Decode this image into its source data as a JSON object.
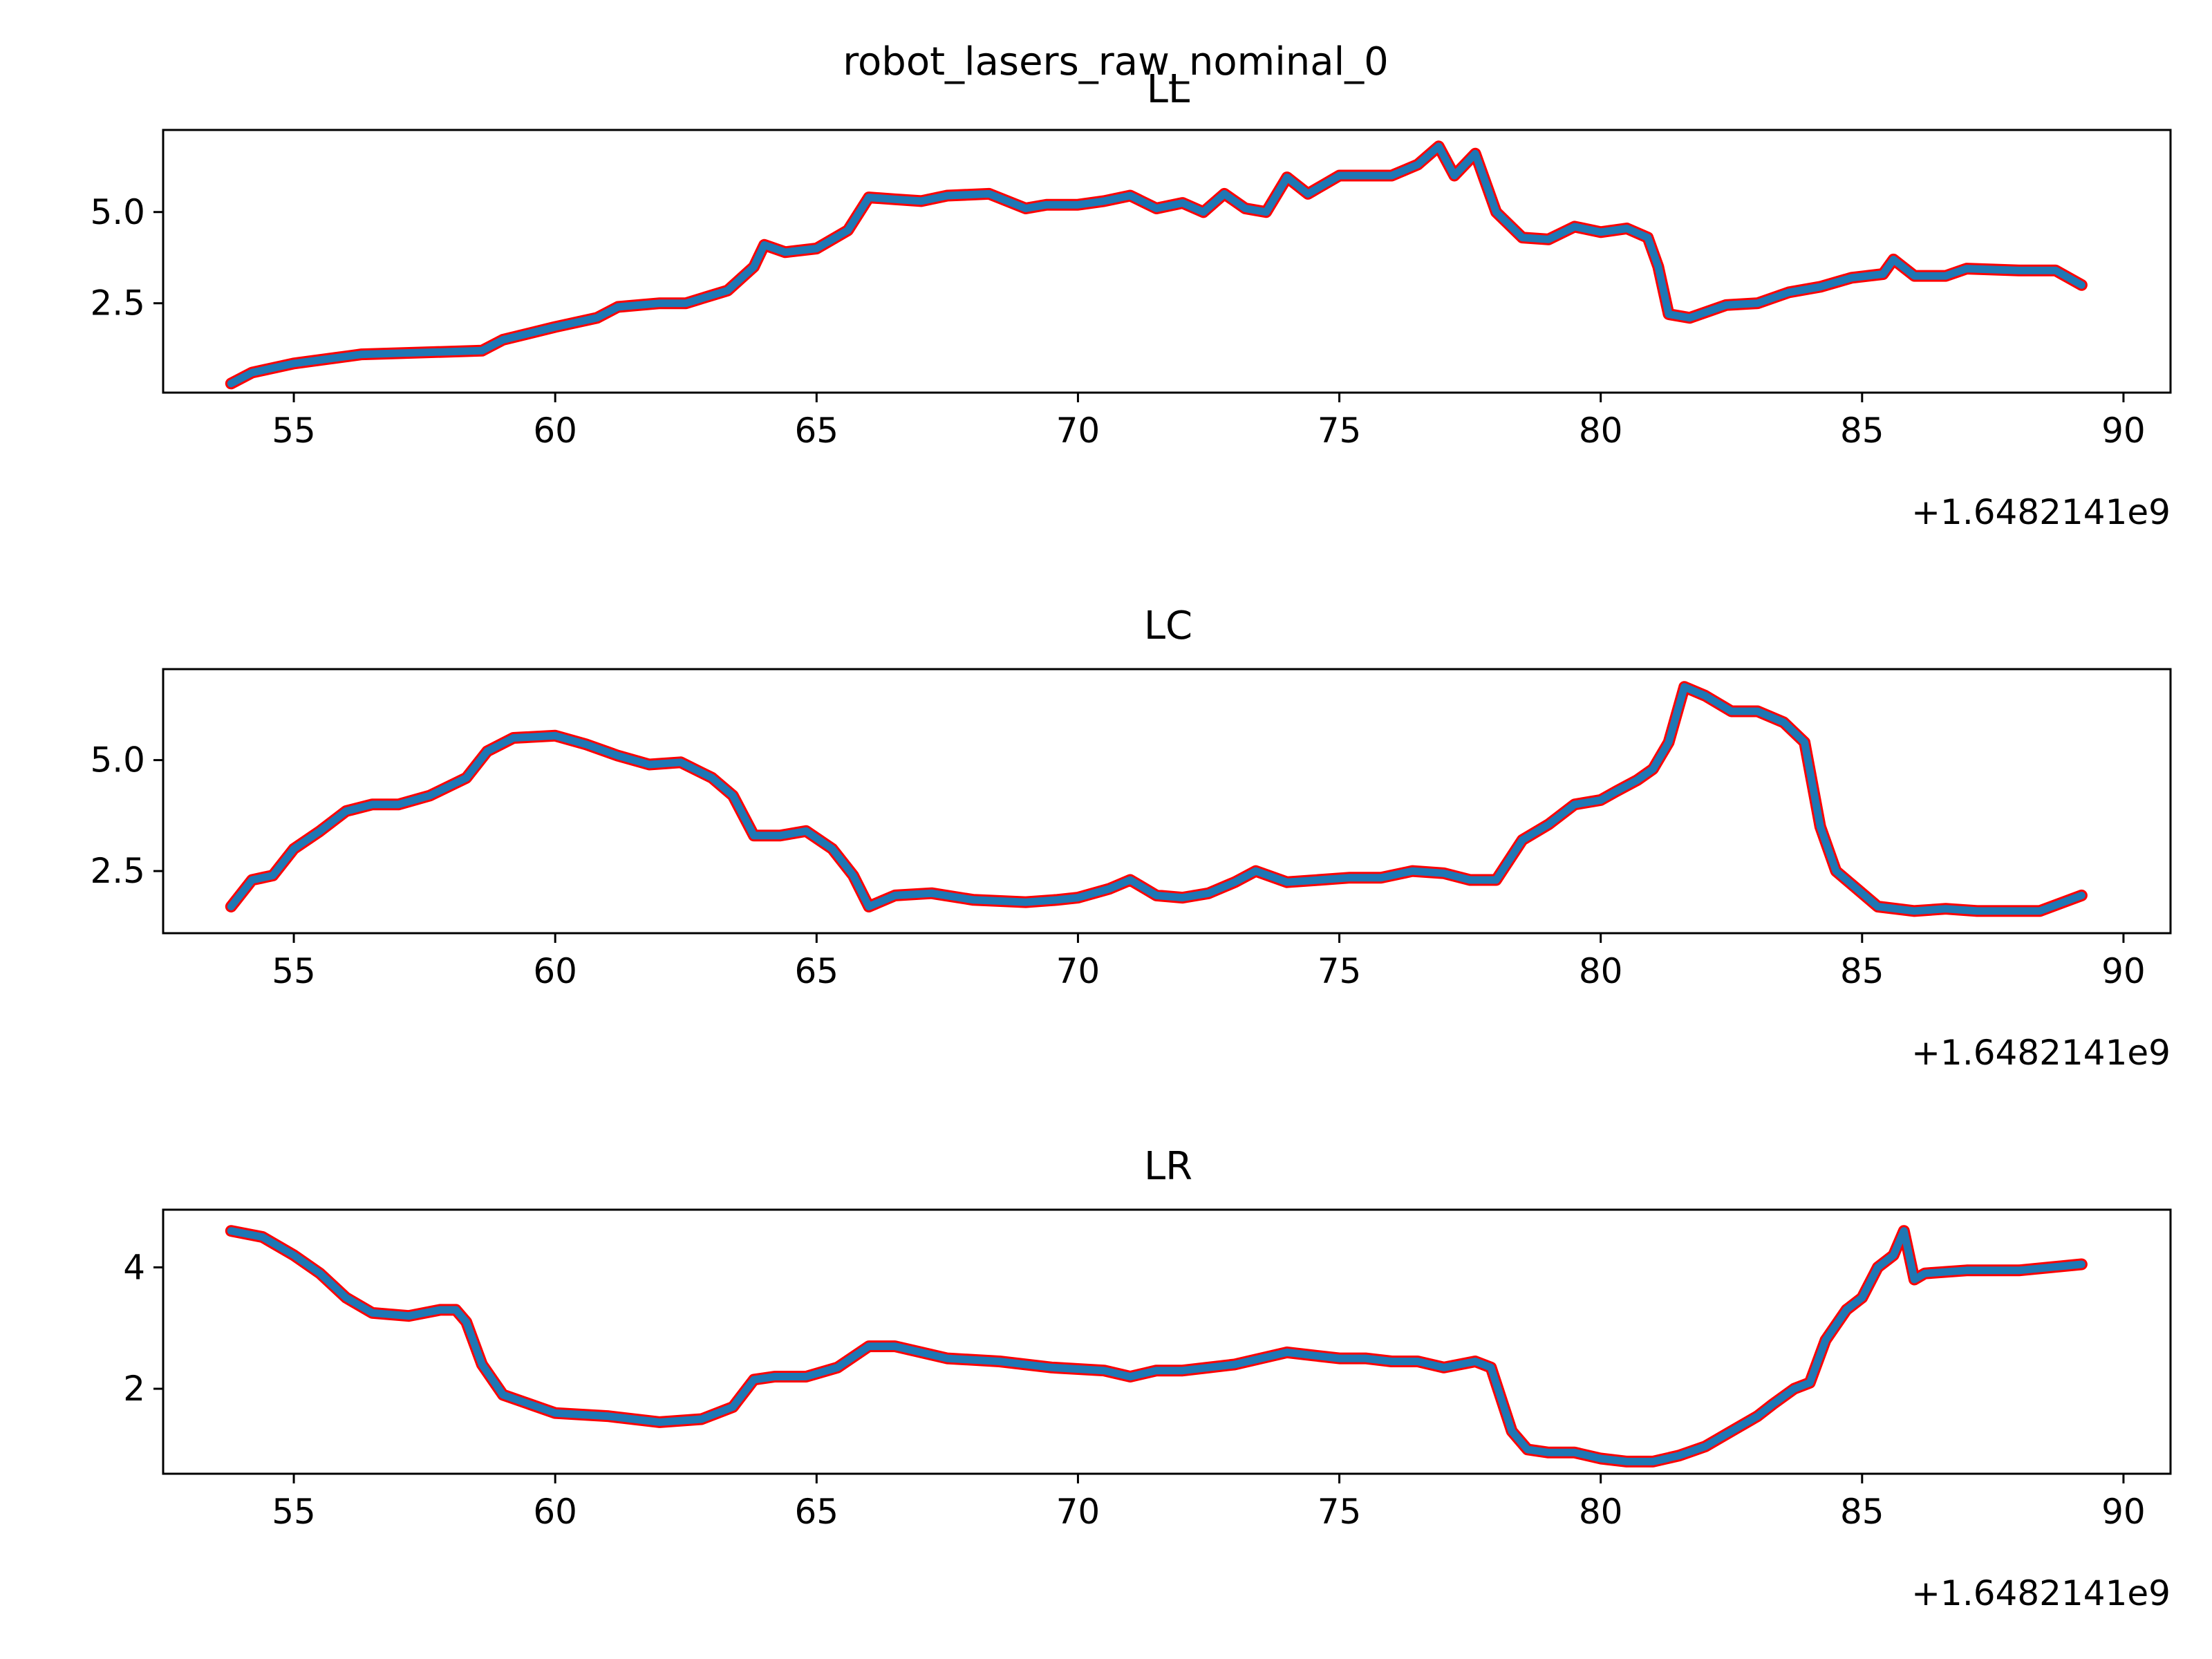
{
  "figure": {
    "suptitle": "robot_lasers_raw_nominal_0"
  },
  "chart_data": [
    {
      "type": "line",
      "title": "LL",
      "xlabel": "",
      "ylabel": "",
      "x_offset_label": "+1.6482141e9",
      "xlim": [
        52.5,
        90.9
      ],
      "ylim": [
        0.05,
        7.25
      ],
      "xticks": [
        55,
        60,
        65,
        70,
        75,
        80,
        85,
        90
      ],
      "xtick_labels": [
        "55",
        "60",
        "65",
        "70",
        "75",
        "80",
        "85",
        "90"
      ],
      "yticks": [
        2.5,
        5.0
      ],
      "ytick_labels": [
        "2.5",
        "5.0"
      ],
      "grid": false,
      "legend": "none",
      "series": [
        {
          "color": "#1f77b4",
          "edge_color": "#ff0000",
          "x": [
            53.8,
            54.2,
            55.0,
            56.3,
            58.6,
            59.0,
            60.0,
            60.8,
            61.2,
            62.0,
            62.5,
            63.3,
            63.8,
            64.0,
            64.4,
            65.0,
            65.6,
            66.0,
            66.5,
            67.0,
            67.5,
            68.3,
            69.0,
            69.4,
            70.0,
            70.5,
            71.0,
            71.5,
            72.0,
            72.4,
            72.8,
            73.2,
            73.6,
            74.0,
            74.4,
            75.0,
            75.5,
            76.0,
            76.5,
            76.9,
            77.2,
            77.6,
            78.0,
            78.5,
            79.0,
            79.5,
            80.0,
            80.5,
            80.9,
            81.1,
            81.3,
            81.7,
            82.4,
            83.0,
            83.6,
            84.2,
            84.8,
            85.4,
            85.6,
            86.0,
            86.6,
            87.0,
            88.0,
            88.7,
            89.2
          ],
          "values": [
            0.3,
            0.6,
            0.85,
            1.1,
            1.2,
            1.5,
            1.85,
            2.1,
            2.4,
            2.5,
            2.5,
            2.85,
            3.5,
            4.1,
            3.9,
            4.0,
            4.5,
            5.4,
            5.35,
            5.3,
            5.45,
            5.5,
            5.1,
            5.2,
            5.2,
            5.3,
            5.45,
            5.1,
            5.25,
            5.0,
            5.5,
            5.1,
            5.0,
            5.95,
            5.5,
            6.0,
            6.0,
            6.0,
            6.3,
            6.8,
            6.0,
            6.6,
            5.0,
            4.3,
            4.25,
            4.6,
            4.45,
            4.55,
            4.3,
            3.5,
            2.2,
            2.1,
            2.45,
            2.5,
            2.8,
            2.95,
            3.2,
            3.3,
            3.7,
            3.25,
            3.25,
            3.45,
            3.4,
            3.4,
            3.0
          ]
        }
      ]
    },
    {
      "type": "line",
      "title": "LC",
      "xlabel": "",
      "ylabel": "",
      "x_offset_label": "+1.6482141e9",
      "xlim": [
        52.5,
        90.9
      ],
      "ylim": [
        1.1,
        7.05
      ],
      "xticks": [
        55,
        60,
        65,
        70,
        75,
        80,
        85,
        90
      ],
      "xtick_labels": [
        "55",
        "60",
        "65",
        "70",
        "75",
        "80",
        "85",
        "90"
      ],
      "yticks": [
        2.5,
        5.0
      ],
      "ytick_labels": [
        "2.5",
        "5.0"
      ],
      "grid": false,
      "legend": "none",
      "series": [
        {
          "color": "#1f77b4",
          "edge_color": "#ff0000",
          "x": [
            53.8,
            54.2,
            54.6,
            55.0,
            55.5,
            56.0,
            56.5,
            57.0,
            57.6,
            58.3,
            58.7,
            59.2,
            60.0,
            60.6,
            61.2,
            61.8,
            62.4,
            63.0,
            63.4,
            63.8,
            64.3,
            64.8,
            65.3,
            65.7,
            66.0,
            66.5,
            67.2,
            68.0,
            69.0,
            69.6,
            70.0,
            70.6,
            71.0,
            71.5,
            72.0,
            72.5,
            73.0,
            73.4,
            74.0,
            74.6,
            75.2,
            75.8,
            76.4,
            77.0,
            77.5,
            78.0,
            78.5,
            79.0,
            79.5,
            80.0,
            80.3,
            80.7,
            81.0,
            81.3,
            81.6,
            82.0,
            82.5,
            83.0,
            83.5,
            83.9,
            84.2,
            84.5,
            84.8,
            85.3,
            86.0,
            86.6,
            87.2,
            87.8,
            88.4,
            89.2
          ],
          "values": [
            1.7,
            2.3,
            2.4,
            3.0,
            3.4,
            3.85,
            4.0,
            4.0,
            4.2,
            4.6,
            5.2,
            5.5,
            5.55,
            5.35,
            5.1,
            4.9,
            4.95,
            4.6,
            4.2,
            3.3,
            3.3,
            3.4,
            3.0,
            2.4,
            1.7,
            1.95,
            2.0,
            1.85,
            1.8,
            1.85,
            1.9,
            2.1,
            2.3,
            1.95,
            1.9,
            2.0,
            2.25,
            2.5,
            2.25,
            2.3,
            2.35,
            2.35,
            2.5,
            2.45,
            2.3,
            2.3,
            3.2,
            3.55,
            4.0,
            4.1,
            4.3,
            4.55,
            4.8,
            5.4,
            6.65,
            6.45,
            6.1,
            6.1,
            5.85,
            5.4,
            3.5,
            2.5,
            2.2,
            1.7,
            1.6,
            1.65,
            1.6,
            1.6,
            1.6,
            1.95
          ]
        }
      ]
    },
    {
      "type": "line",
      "title": "LR",
      "xlabel": "",
      "ylabel": "",
      "x_offset_label": "+1.6482141e9",
      "xlim": [
        52.5,
        90.9
      ],
      "ylim": [
        0.6,
        4.95
      ],
      "xticks": [
        55,
        60,
        65,
        70,
        75,
        80,
        85,
        90
      ],
      "xtick_labels": [
        "55",
        "60",
        "65",
        "70",
        "75",
        "80",
        "85",
        "90"
      ],
      "yticks": [
        2,
        4
      ],
      "ytick_labels": [
        "2",
        "4"
      ],
      "grid": false,
      "legend": "none",
      "series": [
        {
          "color": "#1f77b4",
          "edge_color": "#ff0000",
          "x": [
            53.8,
            54.4,
            55.0,
            55.5,
            56.0,
            56.5,
            57.2,
            57.8,
            58.1,
            58.3,
            58.6,
            59.0,
            60.0,
            61.0,
            62.0,
            62.8,
            63.4,
            63.8,
            64.2,
            64.8,
            65.4,
            66.0,
            66.5,
            67.0,
            67.5,
            68.5,
            69.5,
            70.5,
            71.0,
            71.5,
            72.0,
            72.5,
            73.0,
            73.5,
            74.0,
            74.5,
            75.0,
            75.5,
            76.0,
            76.5,
            77.0,
            77.6,
            77.9,
            78.3,
            78.6,
            79.0,
            79.5,
            80.0,
            80.5,
            81.0,
            81.5,
            82.0,
            82.5,
            83.0,
            83.3,
            83.7,
            84.0,
            84.3,
            84.7,
            85.0,
            85.3,
            85.6,
            85.8,
            86.0,
            86.2,
            87.0,
            88.0,
            89.2
          ],
          "values": [
            4.6,
            4.5,
            4.2,
            3.9,
            3.5,
            3.25,
            3.2,
            3.3,
            3.3,
            3.1,
            2.4,
            1.9,
            1.6,
            1.55,
            1.45,
            1.5,
            1.7,
            2.15,
            2.2,
            2.2,
            2.35,
            2.7,
            2.7,
            2.6,
            2.5,
            2.45,
            2.35,
            2.3,
            2.2,
            2.3,
            2.3,
            2.35,
            2.4,
            2.5,
            2.6,
            2.55,
            2.5,
            2.5,
            2.45,
            2.45,
            2.35,
            2.45,
            2.35,
            1.3,
            1.0,
            0.95,
            0.95,
            0.85,
            0.8,
            0.8,
            0.9,
            1.05,
            1.3,
            1.55,
            1.75,
            2.0,
            2.1,
            2.8,
            3.3,
            3.5,
            4.0,
            4.2,
            4.6,
            3.8,
            3.9,
            3.95,
            3.95,
            4.05
          ]
        }
      ]
    }
  ]
}
